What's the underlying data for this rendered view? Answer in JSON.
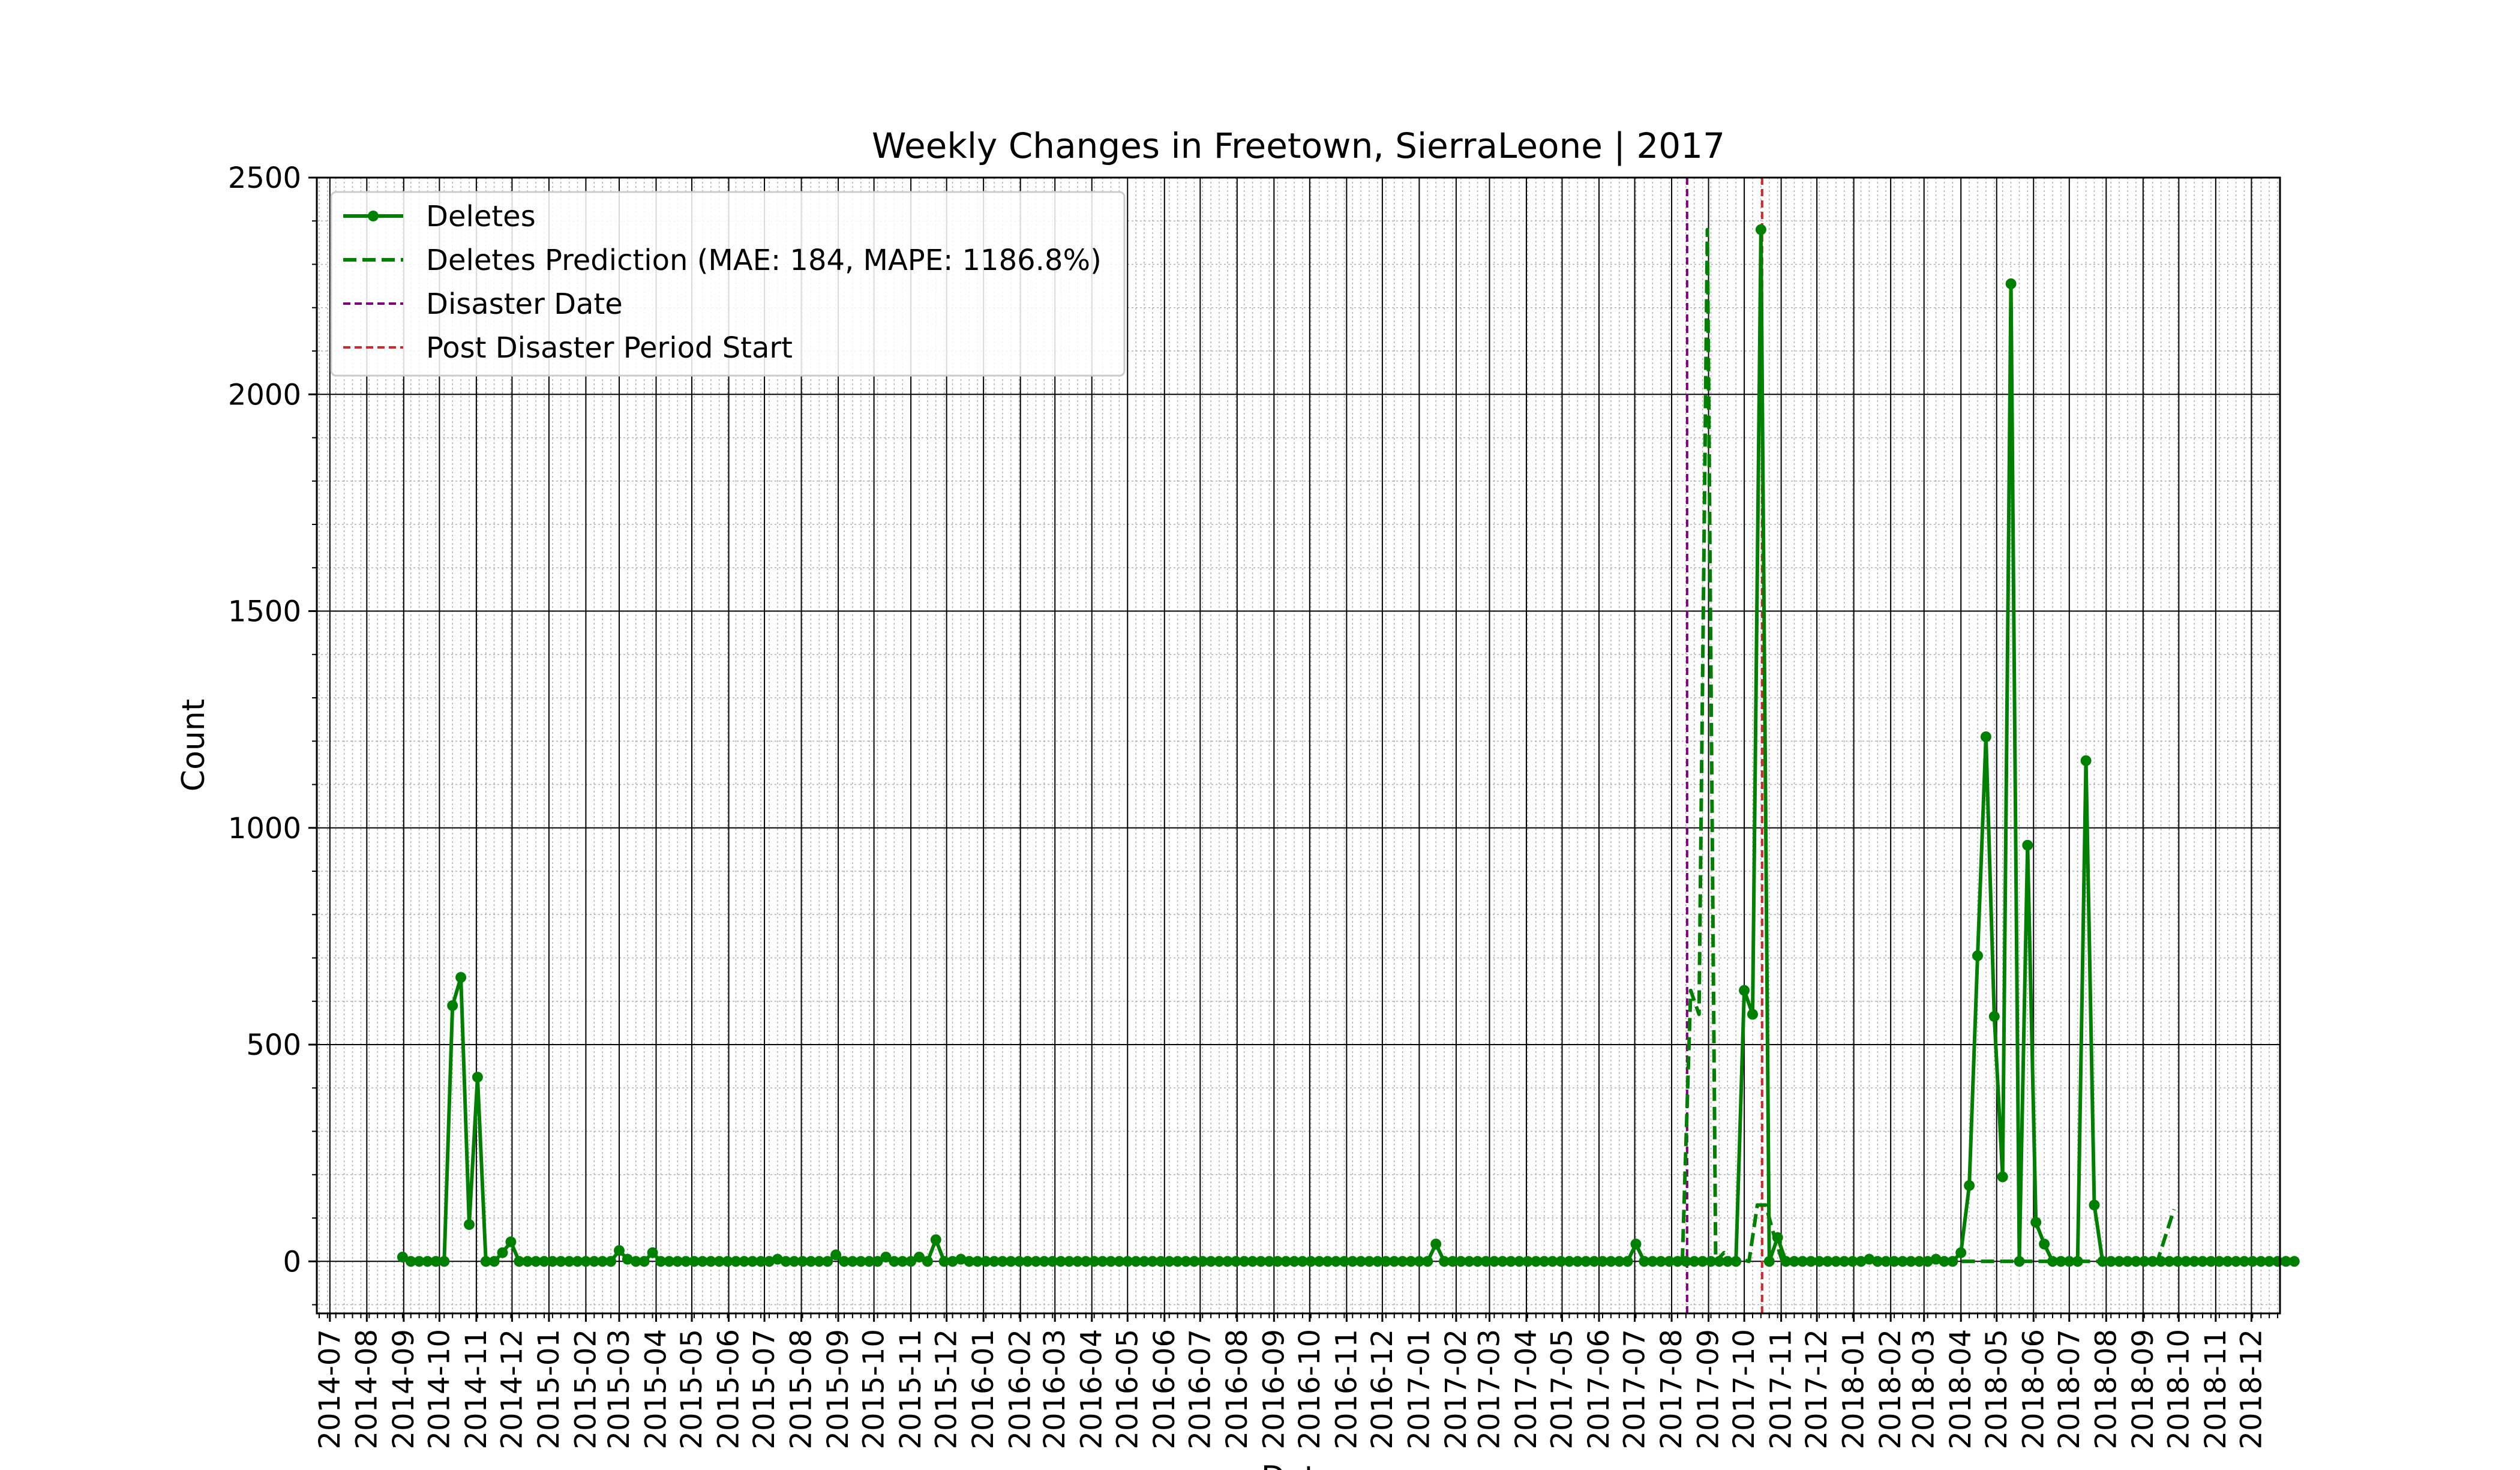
{
  "chart_data": {
    "type": "line",
    "title": "Weekly Changes in Freetown, SierraLeone | 2017",
    "xlabel": "Date",
    "ylabel": "Count",
    "ylim": [
      -120,
      2500
    ],
    "xlim": [
      "2014-06-20",
      "2018-12-25"
    ],
    "yticks": [
      0,
      500,
      1000,
      1500,
      2000,
      2500
    ],
    "xticks": [
      "2014-07",
      "2014-08",
      "2014-09",
      "2014-10",
      "2014-11",
      "2014-12",
      "2015-01",
      "2015-02",
      "2015-03",
      "2015-04",
      "2015-05",
      "2015-06",
      "2015-07",
      "2015-08",
      "2015-09",
      "2015-10",
      "2015-11",
      "2015-12",
      "2016-01",
      "2016-02",
      "2016-03",
      "2016-04",
      "2016-05",
      "2016-06",
      "2016-07",
      "2016-08",
      "2016-09",
      "2016-10",
      "2016-11",
      "2016-12",
      "2017-01",
      "2017-02",
      "2017-03",
      "2017-04",
      "2017-05",
      "2017-06",
      "2017-07",
      "2017-08",
      "2017-09",
      "2017-10",
      "2017-11",
      "2017-12",
      "2018-01",
      "2018-02",
      "2018-03",
      "2018-04",
      "2018-05",
      "2018-06",
      "2018-07",
      "2018-08",
      "2018-09",
      "2018-10",
      "2018-11",
      "2018-12"
    ],
    "grid": true,
    "legend": "top-left",
    "series_start": "2014-08-31",
    "series_interval_days": 7,
    "series": [
      {
        "name": "Deletes",
        "color": "#008000",
        "style": "solid-markers",
        "values": [
          10,
          0,
          0,
          0,
          0,
          0,
          590,
          655,
          85,
          425,
          0,
          0,
          20,
          45,
          0,
          0,
          0,
          0,
          0,
          0,
          0,
          0,
          0,
          0,
          0,
          0,
          25,
          5,
          0,
          0,
          20,
          0,
          0,
          0,
          0,
          0,
          0,
          0,
          0,
          0,
          0,
          0,
          0,
          0,
          0,
          5,
          0,
          0,
          0,
          0,
          0,
          0,
          15,
          0,
          0,
          0,
          0,
          0,
          10,
          0,
          0,
          0,
          10,
          0,
          50,
          0,
          0,
          5,
          0,
          0,
          0,
          0,
          0,
          0,
          0,
          0,
          0,
          0,
          0,
          0,
          0,
          0,
          0,
          0,
          0,
          0,
          0,
          0,
          0,
          0,
          0,
          0,
          0,
          0,
          0,
          0,
          0,
          0,
          0,
          0,
          0,
          0,
          0,
          0,
          0,
          0,
          0,
          0,
          0,
          0,
          0,
          0,
          0,
          0,
          0,
          0,
          0,
          0,
          0,
          0,
          0,
          0,
          0,
          0,
          40,
          0,
          0,
          0,
          0,
          0,
          0,
          0,
          0,
          0,
          0,
          0,
          0,
          0,
          0,
          0,
          0,
          0,
          0,
          0,
          0,
          0,
          0,
          0,
          40,
          0,
          0,
          0,
          0,
          0,
          0,
          0,
          0,
          0,
          0,
          0,
          0,
          625,
          570,
          2380,
          0,
          55,
          0,
          0,
          0,
          0,
          0,
          0,
          0,
          0,
          0,
          0,
          5,
          0,
          0,
          0,
          0,
          0,
          0,
          0,
          5,
          0,
          0,
          20,
          175,
          705,
          1210,
          565,
          195,
          2255,
          0,
          960,
          90,
          40,
          0,
          0,
          0,
          0,
          1155,
          130,
          0,
          0,
          0,
          0,
          0,
          0,
          0,
          0,
          0,
          0,
          0,
          0,
          0,
          0,
          0,
          0,
          0,
          0,
          0,
          0,
          0,
          0,
          0,
          0
        ]
      },
      {
        "name": "Deletes Prediction (MAE: 184, MAPE: 1186.8%)",
        "color": "#008000",
        "style": "dashed",
        "x_start": "2017-08-10",
        "values": [
          0,
          625,
          570,
          2380,
          0,
          20,
          0,
          5,
          0,
          130,
          130,
          60,
          0,
          0,
          0,
          0,
          0,
          0,
          0,
          0,
          0,
          0,
          0,
          0,
          0,
          0,
          0,
          0,
          0,
          0,
          0,
          0,
          0,
          0,
          0,
          0,
          0,
          0,
          0,
          0,
          0,
          0,
          0,
          0,
          0,
          0,
          0,
          0,
          0,
          0,
          0,
          0,
          0,
          0,
          0,
          0,
          0,
          0,
          60,
          120
        ]
      }
    ],
    "vlines": [
      {
        "name": "Disaster Date",
        "date": "2017-08-14",
        "color": "#800080"
      },
      {
        "name": "Post Disaster Period Start",
        "date": "2017-10-16",
        "color": "#d62728"
      }
    ]
  }
}
